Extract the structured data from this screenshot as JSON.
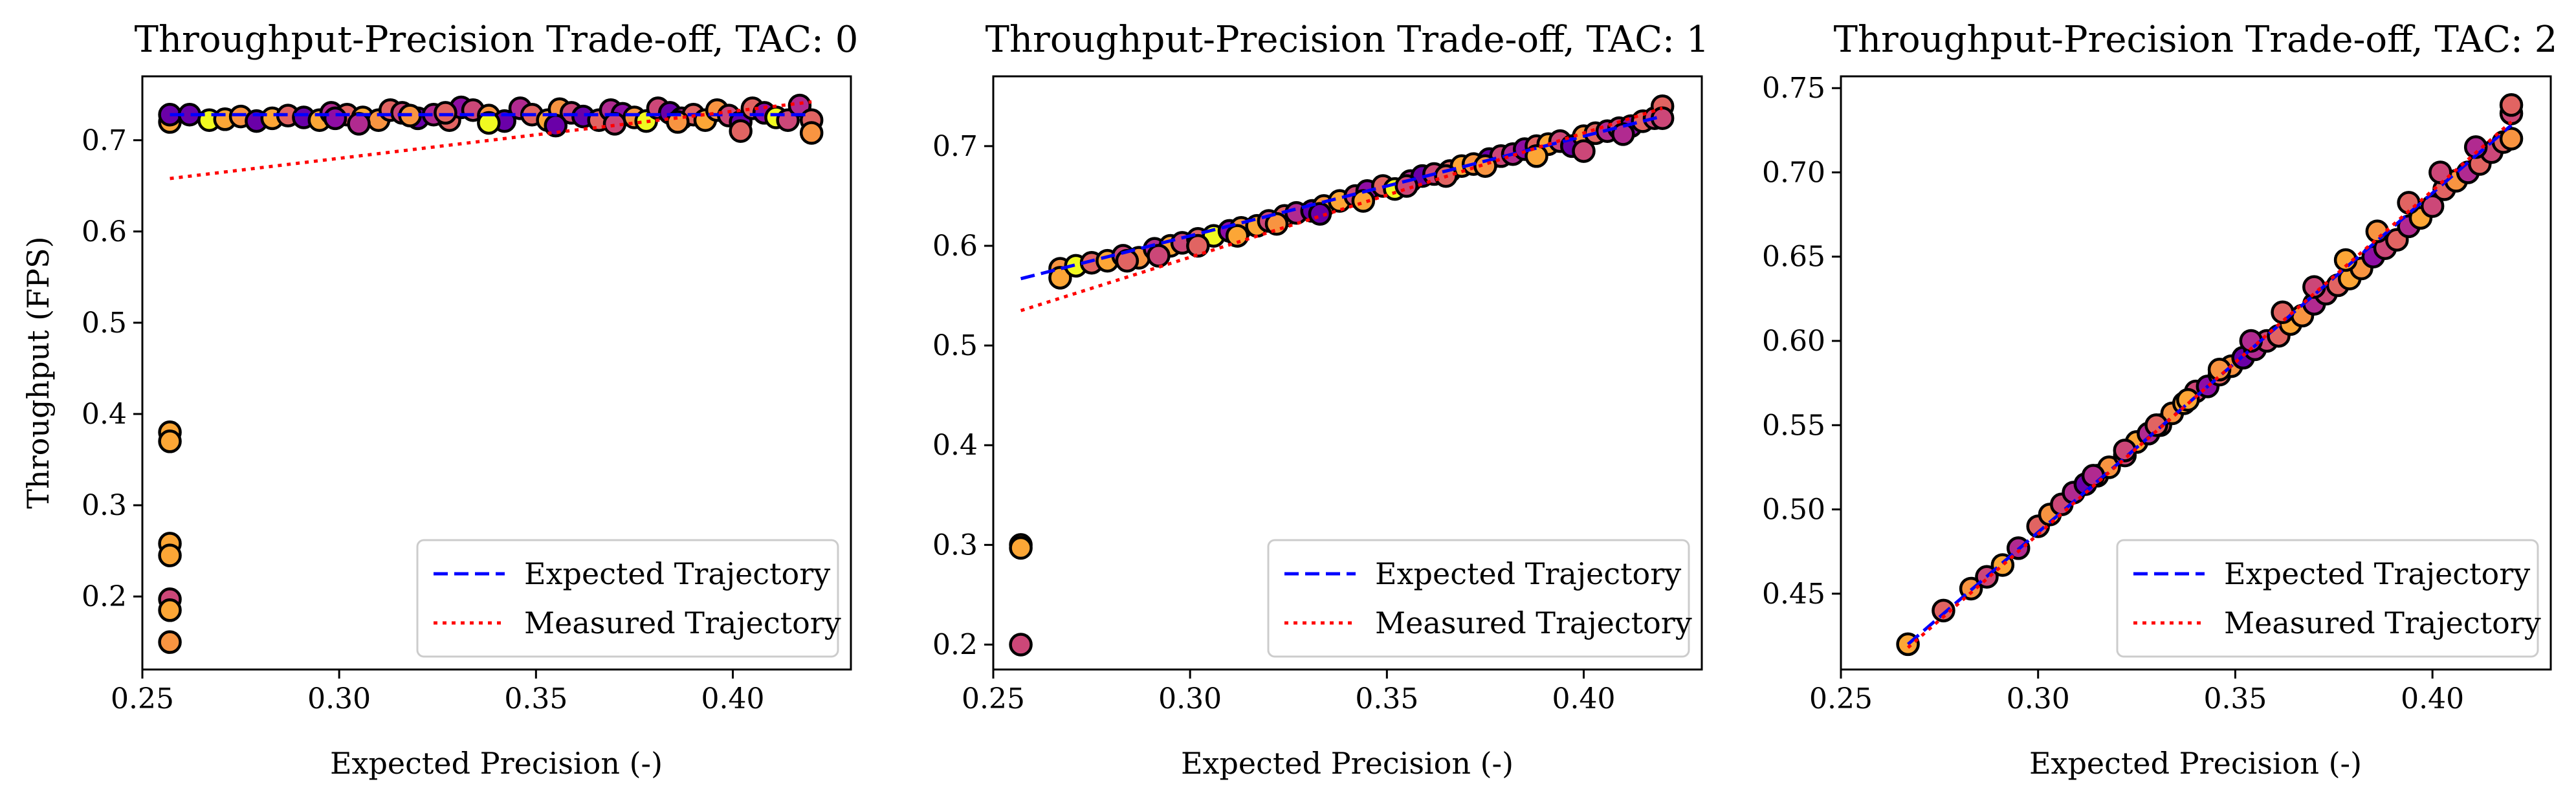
{
  "chart_data": [
    {
      "type": "scatter",
      "title": "Throughput-Precision Trade-off, TAC: 0",
      "xlabel": "Expected Precision (-)",
      "ylabel": "Throughput (FPS)",
      "xlim": [
        0.25,
        0.43
      ],
      "ylim": [
        0.12,
        0.77
      ],
      "xticks": [
        "0.25",
        "0.30",
        "0.35",
        "0.40"
      ],
      "yticks": [
        "0.2",
        "0.3",
        "0.4",
        "0.5",
        "0.6",
        "0.7"
      ],
      "legend_position": "bottom-right",
      "series": [
        {
          "name": "Expected Trajectory",
          "style": "dashed",
          "color": "#0000ff",
          "x": [
            0.257,
            0.42
          ],
          "y": [
            0.728,
            0.728
          ]
        },
        {
          "name": "Measured Trajectory",
          "style": "dotted",
          "color": "#ff0000",
          "x": [
            0.257,
            0.42
          ],
          "y": [
            0.658,
            0.742
          ]
        }
      ],
      "points": {
        "x": [
          0.257,
          0.257,
          0.257,
          0.257,
          0.257,
          0.257,
          0.257,
          0.257,
          0.257,
          0.262,
          0.267,
          0.271,
          0.275,
          0.279,
          0.283,
          0.287,
          0.291,
          0.295,
          0.298,
          0.302,
          0.306,
          0.31,
          0.313,
          0.316,
          0.32,
          0.324,
          0.328,
          0.331,
          0.334,
          0.338,
          0.342,
          0.346,
          0.349,
          0.353,
          0.356,
          0.359,
          0.362,
          0.366,
          0.369,
          0.372,
          0.375,
          0.378,
          0.381,
          0.384,
          0.387,
          0.39,
          0.393,
          0.396,
          0.399,
          0.402,
          0.405,
          0.408,
          0.411,
          0.414,
          0.417,
          0.42,
          0.42,
          0.402,
          0.386,
          0.37,
          0.355,
          0.338,
          0.318,
          0.305,
          0.299,
          0.327
        ],
        "y": [
          0.38,
          0.37,
          0.258,
          0.245,
          0.197,
          0.185,
          0.15,
          0.72,
          0.728,
          0.728,
          0.722,
          0.723,
          0.726,
          0.721,
          0.724,
          0.727,
          0.725,
          0.722,
          0.73,
          0.728,
          0.725,
          0.722,
          0.733,
          0.73,
          0.724,
          0.728,
          0.722,
          0.736,
          0.733,
          0.727,
          0.721,
          0.735,
          0.728,
          0.722,
          0.734,
          0.73,
          0.726,
          0.722,
          0.733,
          0.729,
          0.725,
          0.721,
          0.735,
          0.73,
          0.724,
          0.728,
          0.722,
          0.733,
          0.727,
          0.72,
          0.735,
          0.73,
          0.725,
          0.722,
          0.738,
          0.722,
          0.708,
          0.71,
          0.72,
          0.718,
          0.716,
          0.719,
          0.727,
          0.718,
          0.724,
          0.73
        ],
        "colors": [
          "#fca636",
          "#fca636",
          "#fca636",
          "#fca636",
          "#cc4778",
          "#fca636",
          "#f89441",
          "#fca636",
          "#6a00a8",
          "#6a00a8",
          "#f0f921",
          "#fca636",
          "#f89441",
          "#6a00a8",
          "#fca636",
          "#e16462",
          "#6a00a8",
          "#fca636",
          "#b12a90",
          "#e16462",
          "#fca636",
          "#f89441",
          "#e16462",
          "#cc4778",
          "#6a00a8",
          "#b12a90",
          "#e16462",
          "#8f0da4",
          "#cc4778",
          "#f89441",
          "#6a00a8",
          "#b12a90",
          "#e16462",
          "#fca636",
          "#f89441",
          "#cc4778",
          "#6a00a8",
          "#e16462",
          "#b12a90",
          "#8f0da4",
          "#f89441",
          "#f0f921",
          "#cc4778",
          "#6a00a8",
          "#b12a90",
          "#e16462",
          "#fca636",
          "#f89441",
          "#cc4778",
          "#6a00a8",
          "#e16462",
          "#8f0da4",
          "#f0f921",
          "#cc4778",
          "#b12a90",
          "#e16462",
          "#f89441",
          "#e16462",
          "#f89441",
          "#cc4778",
          "#6a00a8",
          "#f0f921",
          "#f89441",
          "#b12a90",
          "#8f0da4",
          "#e16462"
        ]
      }
    },
    {
      "type": "scatter",
      "title": "Throughput-Precision Trade-off, TAC: 1",
      "xlabel": "Expected Precision (-)",
      "ylabel": "",
      "xlim": [
        0.25,
        0.43
      ],
      "ylim": [
        0.175,
        0.77
      ],
      "xticks": [
        "0.25",
        "0.30",
        "0.35",
        "0.40"
      ],
      "yticks": [
        "0.2",
        "0.3",
        "0.4",
        "0.5",
        "0.6",
        "0.7"
      ],
      "legend_position": "bottom-right",
      "series": [
        {
          "name": "Expected Trajectory",
          "style": "dashed",
          "color": "#0000ff",
          "x": [
            0.257,
            0.42
          ],
          "y": [
            0.567,
            0.73
          ]
        },
        {
          "name": "Measured Trajectory",
          "style": "dotted",
          "color": "#ff0000",
          "x": [
            0.257,
            0.42
          ],
          "y": [
            0.535,
            0.738
          ]
        }
      ],
      "points": {
        "x": [
          0.257,
          0.257,
          0.257,
          0.267,
          0.267,
          0.271,
          0.275,
          0.279,
          0.283,
          0.287,
          0.291,
          0.295,
          0.298,
          0.302,
          0.306,
          0.31,
          0.313,
          0.317,
          0.32,
          0.324,
          0.327,
          0.331,
          0.334,
          0.338,
          0.342,
          0.345,
          0.349,
          0.352,
          0.356,
          0.359,
          0.362,
          0.366,
          0.369,
          0.372,
          0.376,
          0.379,
          0.382,
          0.385,
          0.388,
          0.391,
          0.394,
          0.397,
          0.4,
          0.403,
          0.406,
          0.409,
          0.412,
          0.415,
          0.418,
          0.42,
          0.42,
          0.4,
          0.388,
          0.375,
          0.365,
          0.355,
          0.344,
          0.333,
          0.322,
          0.312,
          0.302,
          0.292,
          0.284,
          0.41
        ],
        "y": [
          0.3,
          0.297,
          0.2,
          0.577,
          0.568,
          0.58,
          0.583,
          0.585,
          0.59,
          0.588,
          0.597,
          0.6,
          0.603,
          0.607,
          0.61,
          0.615,
          0.618,
          0.62,
          0.625,
          0.63,
          0.633,
          0.635,
          0.64,
          0.645,
          0.65,
          0.655,
          0.66,
          0.657,
          0.665,
          0.67,
          0.672,
          0.675,
          0.68,
          0.682,
          0.687,
          0.69,
          0.692,
          0.697,
          0.7,
          0.702,
          0.705,
          0.7,
          0.71,
          0.713,
          0.715,
          0.718,
          0.72,
          0.725,
          0.728,
          0.74,
          0.728,
          0.695,
          0.69,
          0.68,
          0.67,
          0.66,
          0.645,
          0.632,
          0.622,
          0.61,
          0.6,
          0.59,
          0.585,
          0.712
        ],
        "colors": [
          "#f89441",
          "#fca636",
          "#cc4778",
          "#f89441",
          "#fca636",
          "#f0f921",
          "#e16462",
          "#fca636",
          "#cc4778",
          "#f89441",
          "#b12a90",
          "#fca636",
          "#cc4778",
          "#e16462",
          "#f0f921",
          "#8f0da4",
          "#f89441",
          "#fca636",
          "#cc4778",
          "#e16462",
          "#b12a90",
          "#6a00a8",
          "#f89441",
          "#fca636",
          "#cc4778",
          "#8f0da4",
          "#e16462",
          "#f0f921",
          "#b12a90",
          "#6a00a8",
          "#cc4778",
          "#e16462",
          "#fca636",
          "#f89441",
          "#6a00a8",
          "#cc4778",
          "#b12a90",
          "#8f0da4",
          "#e16462",
          "#fca636",
          "#cc4778",
          "#6a00a8",
          "#f89441",
          "#e16462",
          "#b12a90",
          "#cc4778",
          "#8f0da4",
          "#e16462",
          "#cc4778",
          "#e16462",
          "#cc4778",
          "#cc4778",
          "#fca636",
          "#f89441",
          "#e16462",
          "#cc4778",
          "#fca636",
          "#6a00a8",
          "#f89441",
          "#fca636",
          "#e16462",
          "#cc4778",
          "#e16462",
          "#b12a90"
        ]
      }
    },
    {
      "type": "scatter",
      "title": "Throughput-Precision Trade-off, TAC: 2",
      "xlabel": "Expected Precision (-)",
      "ylabel": "",
      "xlim": [
        0.25,
        0.43
      ],
      "ylim": [
        0.405,
        0.757
      ],
      "xticks": [
        "0.25",
        "0.30",
        "0.35",
        "0.40"
      ],
      "yticks": [
        "0.45",
        "0.50",
        "0.55",
        "0.60",
        "0.65",
        "0.70",
        "0.75"
      ],
      "legend_position": "bottom-right",
      "series": [
        {
          "name": "Expected Trajectory",
          "style": "dashed",
          "color": "#0000ff",
          "x": [
            0.267,
            0.42
          ],
          "y": [
            0.42,
            0.728
          ]
        },
        {
          "name": "Measured Trajectory",
          "style": "dotted",
          "color": "#ff0000",
          "x": [
            0.267,
            0.42
          ],
          "y": [
            0.418,
            0.73
          ]
        }
      ],
      "points": {
        "x": [
          0.267,
          0.276,
          0.283,
          0.287,
          0.291,
          0.295,
          0.3,
          0.303,
          0.306,
          0.309,
          0.312,
          0.315,
          0.318,
          0.322,
          0.325,
          0.328,
          0.331,
          0.334,
          0.337,
          0.34,
          0.343,
          0.346,
          0.349,
          0.352,
          0.355,
          0.358,
          0.361,
          0.364,
          0.367,
          0.37,
          0.373,
          0.376,
          0.379,
          0.382,
          0.385,
          0.388,
          0.391,
          0.394,
          0.397,
          0.4,
          0.403,
          0.406,
          0.409,
          0.412,
          0.415,
          0.418,
          0.42,
          0.42,
          0.42,
          0.411,
          0.402,
          0.394,
          0.386,
          0.378,
          0.37,
          0.362,
          0.354,
          0.346,
          0.338,
          0.33,
          0.322,
          0.314
        ],
        "y": [
          0.42,
          0.44,
          0.453,
          0.46,
          0.467,
          0.477,
          0.49,
          0.497,
          0.503,
          0.51,
          0.515,
          0.52,
          0.525,
          0.532,
          0.54,
          0.545,
          0.55,
          0.557,
          0.563,
          0.57,
          0.573,
          0.58,
          0.585,
          0.59,
          0.595,
          0.6,
          0.603,
          0.61,
          0.615,
          0.622,
          0.628,
          0.633,
          0.637,
          0.643,
          0.65,
          0.655,
          0.66,
          0.668,
          0.673,
          0.68,
          0.69,
          0.695,
          0.7,
          0.705,
          0.712,
          0.718,
          0.72,
          0.735,
          0.74,
          0.715,
          0.7,
          0.682,
          0.665,
          0.648,
          0.632,
          0.617,
          0.6,
          0.583,
          0.565,
          0.55,
          0.535,
          0.52
        ],
        "colors": [
          "#fca636",
          "#e16462",
          "#f89441",
          "#cc4778",
          "#fca636",
          "#b12a90",
          "#e16462",
          "#f89441",
          "#cc4778",
          "#b12a90",
          "#6a00a8",
          "#e16462",
          "#f89441",
          "#cc4778",
          "#fca636",
          "#b12a90",
          "#e16462",
          "#f89441",
          "#fca636",
          "#cc4778",
          "#8f0da4",
          "#e16462",
          "#f89441",
          "#6a00a8",
          "#b12a90",
          "#cc4778",
          "#e16462",
          "#fca636",
          "#f89441",
          "#b12a90",
          "#cc4778",
          "#e16462",
          "#fca636",
          "#f89441",
          "#8f0da4",
          "#cc4778",
          "#e16462",
          "#b12a90",
          "#fca636",
          "#cc4778",
          "#e16462",
          "#f89441",
          "#b12a90",
          "#e16462",
          "#cc4778",
          "#e16462",
          "#f89441",
          "#cc4778",
          "#e16462",
          "#b12a90",
          "#cc4778",
          "#e16462",
          "#f89441",
          "#fca636",
          "#cc4778",
          "#e16462",
          "#b12a90",
          "#f89441",
          "#fca636",
          "#e16462",
          "#cc4778",
          "#b12a90"
        ]
      }
    }
  ]
}
